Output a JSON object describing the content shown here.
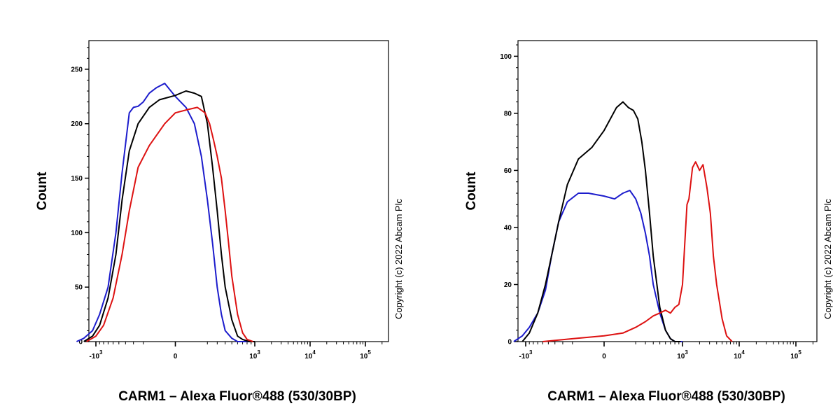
{
  "chart_data": [
    {
      "type": "line",
      "subtype": "flow-cytometry-histogram",
      "title": "",
      "xlabel": "CARM1 – Alexa Fluor®488 (530/30BP)",
      "ylabel": "Count",
      "x_scale": "biexponential",
      "x_tick_labels": [
        {
          "base": "-10",
          "exp": "3",
          "value": -1000
        },
        {
          "base": "0",
          "exp": "",
          "value": 0
        },
        {
          "base": "10",
          "exp": "3",
          "value": 1000
        },
        {
          "base": "10",
          "exp": "4",
          "value": 10000
        },
        {
          "base": "10",
          "exp": "5",
          "value": 100000
        }
      ],
      "ylim": [
        0,
        275
      ],
      "y_ticks": [
        0,
        50,
        100,
        150,
        200,
        250
      ],
      "copyright": "Copyright (c) 2022 Abcam Plc",
      "series": [
        {
          "name": "blue",
          "color": "#1c1ccc",
          "x": [
            -1700,
            -1400,
            -1100,
            -900,
            -700,
            -550,
            -450,
            -350,
            -300,
            -250,
            -200,
            -150,
            -100,
            -50,
            0,
            50,
            100,
            150,
            200,
            250,
            300,
            350,
            400,
            500,
            600,
            700,
            850,
            1000
          ],
          "y": [
            0,
            3,
            10,
            25,
            50,
            100,
            155,
            210,
            215,
            216,
            220,
            228,
            233,
            237,
            225,
            215,
            200,
            170,
            130,
            90,
            50,
            25,
            10,
            3,
            0,
            0,
            0,
            0
          ]
        },
        {
          "name": "black",
          "color": "#000000",
          "x": [
            -1400,
            -1100,
            -900,
            -700,
            -550,
            -450,
            -350,
            -250,
            -150,
            -80,
            0,
            50,
            100,
            150,
            200,
            250,
            300,
            350,
            400,
            500,
            600,
            700,
            850,
            1000
          ],
          "y": [
            0,
            5,
            15,
            40,
            80,
            130,
            175,
            200,
            215,
            222,
            226,
            230,
            228,
            225,
            200,
            160,
            120,
            80,
            50,
            20,
            5,
            2,
            0,
            0
          ]
        },
        {
          "name": "red",
          "color": "#dd1111",
          "x": [
            -1300,
            -1000,
            -800,
            -600,
            -450,
            -350,
            -250,
            -150,
            -50,
            0,
            60,
            120,
            180,
            220,
            260,
            300,
            350,
            400,
            450,
            500,
            600,
            700,
            800,
            950
          ],
          "y": [
            0,
            5,
            15,
            40,
            80,
            120,
            160,
            180,
            200,
            210,
            213,
            215,
            210,
            200,
            185,
            170,
            150,
            120,
            90,
            60,
            25,
            8,
            2,
            0
          ]
        }
      ]
    },
    {
      "type": "line",
      "subtype": "flow-cytometry-histogram",
      "title": "",
      "xlabel": "CARM1 – Alexa Fluor®488 (530/30BP)",
      "ylabel": "Count",
      "x_scale": "biexponential",
      "x_tick_labels": [
        {
          "base": "-10",
          "exp": "3",
          "value": -1000
        },
        {
          "base": "0",
          "exp": "",
          "value": 0
        },
        {
          "base": "10",
          "exp": "3",
          "value": 1000
        },
        {
          "base": "10",
          "exp": "4",
          "value": 10000
        },
        {
          "base": "10",
          "exp": "5",
          "value": 100000
        }
      ],
      "ylim": [
        0,
        105
      ],
      "y_ticks": [
        0,
        20,
        40,
        60,
        80,
        100
      ],
      "copyright": "Copyright (c) 2022 Abcam Plc",
      "series": [
        {
          "name": "blue",
          "color": "#1c1ccc",
          "x": [
            -1400,
            -1100,
            -900,
            -700,
            -550,
            -450,
            -350,
            -250,
            -150,
            -80,
            0,
            50,
            100,
            150,
            200,
            250,
            300,
            350,
            400,
            500,
            600,
            700,
            800,
            1000
          ],
          "y": [
            0,
            2,
            5,
            10,
            18,
            30,
            42,
            49,
            52,
            52,
            51,
            50,
            52,
            53,
            50,
            45,
            38,
            30,
            20,
            10,
            4,
            1,
            0,
            0
          ]
        },
        {
          "name": "black",
          "color": "#000000",
          "x": [
            -1100,
            -900,
            -700,
            -550,
            -450,
            -350,
            -250,
            -150,
            -60,
            0,
            60,
            100,
            140,
            180,
            220,
            260,
            300,
            350,
            400,
            500,
            600,
            700,
            800,
            950
          ],
          "y": [
            0,
            3,
            10,
            20,
            30,
            42,
            55,
            64,
            68,
            74,
            82,
            84,
            82,
            81,
            78,
            70,
            60,
            45,
            30,
            12,
            4,
            1,
            0,
            0
          ]
        },
        {
          "name": "red",
          "color": "#dd1111",
          "x": [
            -600,
            -200,
            0,
            100,
            200,
            300,
            400,
            500,
            600,
            700,
            800,
            900,
            1000,
            1100,
            1200,
            1300,
            1500,
            1700,
            2000,
            2300,
            2700,
            3100,
            3500,
            4000,
            5000,
            6000,
            7500
          ],
          "y": [
            0,
            1,
            2,
            3,
            5,
            7,
            9,
            10,
            11,
            10,
            12,
            13,
            20,
            35,
            48,
            50,
            61,
            63,
            60,
            62,
            54,
            45,
            30,
            20,
            8,
            2,
            0
          ]
        }
      ]
    }
  ]
}
